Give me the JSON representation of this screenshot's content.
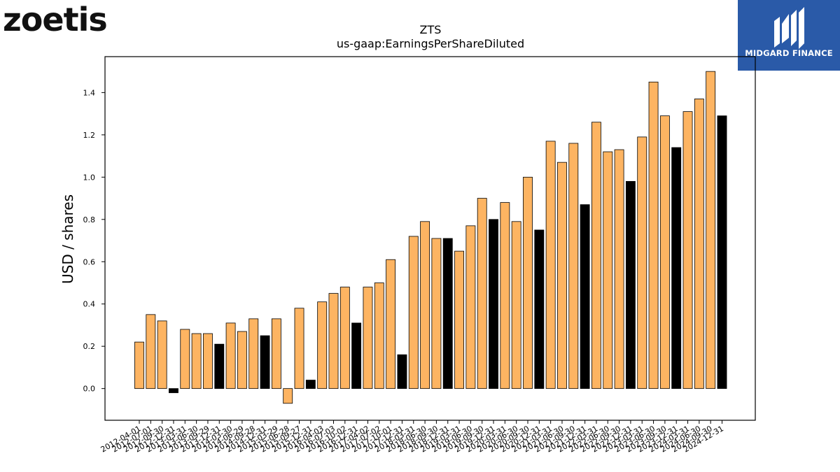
{
  "brand": {
    "company_logo_text": "zoetis",
    "badge_text": "MIDGARD FINANCE",
    "badge_color": "#2a5aa8"
  },
  "chart_data": {
    "type": "bar",
    "title": "ZTS",
    "subtitle": "us-gaap:EarningsPerShareDiluted",
    "ylabel": "USD / shares",
    "xlabel": "",
    "ylim": [
      -0.15,
      1.57
    ],
    "yticks": [
      0.0,
      0.2,
      0.4,
      0.6,
      0.8,
      1.0,
      1.2,
      1.4
    ],
    "grid": false,
    "colors": {
      "quarter": "#FDB462",
      "annual": "#000000",
      "edge": "#000000"
    },
    "categories": [
      "2012-04-01",
      "2012-07-01",
      "2012-09-30",
      "2012-12-31",
      "2013-03-31",
      "2013-06-30",
      "2013-09-29",
      "2013-12-31",
      "2014-03-30",
      "2014-06-29",
      "2014-09-28",
      "2014-12-31",
      "2015-03-29",
      "2015-06-28",
      "2015-09-27",
      "2015-12-31",
      "2016-04-03",
      "2016-07-03",
      "2016-10-02",
      "2016-12-31",
      "2017-04-02",
      "2017-07-02",
      "2017-10-01",
      "2017-12-31",
      "2018-03-31",
      "2018-06-30",
      "2018-09-30",
      "2018-12-31",
      "2019-03-31",
      "2019-06-30",
      "2019-09-30",
      "2019-12-31",
      "2020-03-31",
      "2020-06-30",
      "2020-09-30",
      "2020-12-31",
      "2021-03-31",
      "2021-06-30",
      "2021-09-30",
      "2021-12-31",
      "2022-03-31",
      "2022-06-30",
      "2022-09-30",
      "2022-12-31",
      "2023-03-31",
      "2023-06-30",
      "2023-09-30",
      "2023-12-31",
      "2024-03-31",
      "2024-06-30",
      "2024-09-30",
      "2024-12-31"
    ],
    "values": [
      0.22,
      0.35,
      0.32,
      -0.02,
      0.28,
      0.26,
      0.26,
      0.21,
      0.31,
      0.27,
      0.33,
      0.25,
      0.33,
      -0.07,
      0.38,
      0.04,
      0.41,
      0.45,
      0.48,
      0.31,
      0.48,
      0.5,
      0.61,
      0.16,
      0.72,
      0.79,
      0.71,
      0.71,
      0.65,
      0.77,
      0.9,
      0.8,
      0.88,
      0.79,
      1.0,
      0.75,
      1.17,
      1.07,
      1.16,
      0.87,
      1.26,
      1.12,
      1.13,
      0.98,
      1.19,
      1.45,
      1.29,
      1.14,
      1.31,
      1.37,
      1.5,
      1.29
    ],
    "annual": [
      false,
      false,
      false,
      true,
      false,
      false,
      false,
      true,
      false,
      false,
      false,
      true,
      false,
      false,
      false,
      true,
      false,
      false,
      false,
      true,
      false,
      false,
      false,
      true,
      false,
      false,
      false,
      true,
      false,
      false,
      false,
      true,
      false,
      false,
      false,
      true,
      false,
      false,
      false,
      true,
      false,
      false,
      false,
      true,
      false,
      false,
      false,
      true,
      false,
      false,
      false,
      true
    ]
  }
}
